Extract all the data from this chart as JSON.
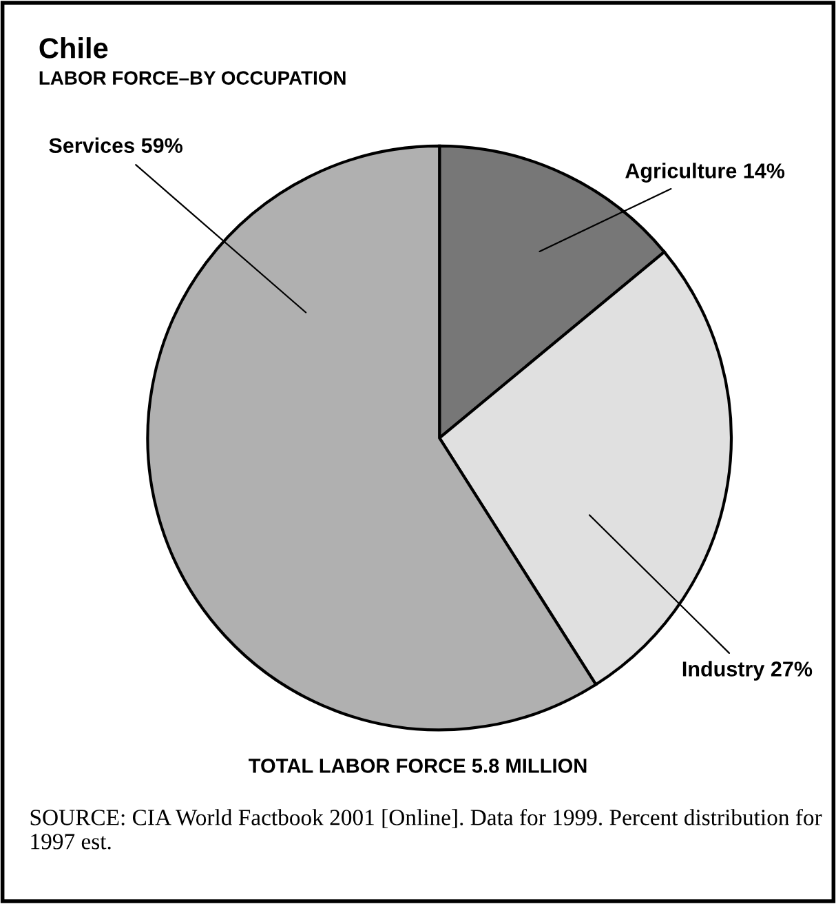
{
  "chart_data": {
    "type": "pie",
    "title": "Chile",
    "subtitle": "LABOR FORCE–BY OCCUPATION",
    "categories": [
      "Agriculture 14%",
      "Industry 27%",
      "Services 59%"
    ],
    "values": [
      14,
      27,
      59
    ],
    "colors": [
      "#777777",
      "#e0e0e0",
      "#b0b0b0"
    ],
    "annotations": [
      "TOTAL LABOR FORCE 5.8 MILLION",
      "SOURCE: CIA World Factbook 2001 [Online]. Data for 1999. Percent distribution for 1997 est."
    ]
  }
}
